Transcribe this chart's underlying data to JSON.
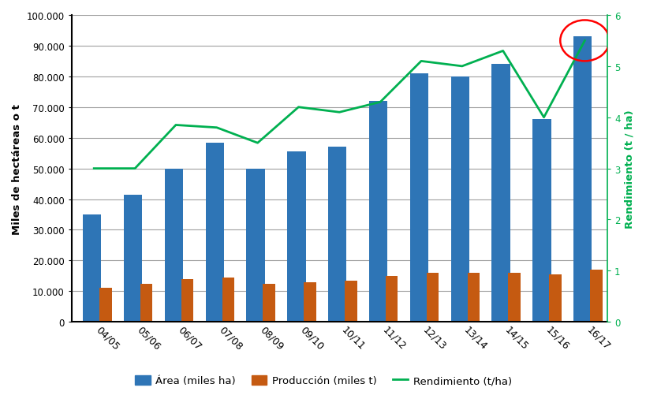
{
  "categories": [
    "04/05",
    "05/06",
    "06/07",
    "07/08",
    "08/09",
    "09/10",
    "10/11",
    "11/12",
    "12/13",
    "13/14",
    "14/15",
    "15/16",
    "16/17"
  ],
  "area": [
    35000,
    41500,
    50000,
    58500,
    50000,
    55500,
    57000,
    72000,
    81000,
    80000,
    84000,
    66000,
    93000
  ],
  "produccion": [
    11000,
    12500,
    14000,
    14500,
    12500,
    13000,
    13500,
    15000,
    16000,
    16000,
    16000,
    15500,
    17000
  ],
  "rendimiento": [
    3.0,
    3.0,
    3.85,
    3.8,
    3.5,
    4.2,
    4.1,
    4.3,
    5.1,
    5.0,
    5.3,
    4.0,
    5.5
  ],
  "bar_color_area": "#2E75B6",
  "bar_color_prod": "#C55A11",
  "line_color": "#00B050",
  "circle_color": "red",
  "ylabel_left": "Miles de hectáreas o t",
  "ylabel_right": "Rendimiento (t / ha)",
  "ylim_left": [
    0,
    100000
  ],
  "ylim_right": [
    0,
    6
  ],
  "yticks_left": [
    0,
    10000,
    20000,
    30000,
    40000,
    50000,
    60000,
    70000,
    80000,
    90000,
    100000
  ],
  "yticks_right": [
    0,
    1,
    2,
    3,
    4,
    5,
    6
  ],
  "ytick_labels_left": [
    "0",
    "10.000",
    "20.000",
    "30.000",
    "40.000",
    "50.000",
    "60.000",
    "70.000",
    "80.000",
    "90.000",
    "100.000"
  ],
  "legend_labels": [
    "Área (miles ha)",
    "Producción (miles t)",
    "Rendimiento (t/ha)"
  ],
  "background_color": "#FFFFFF",
  "grid_color": "#A0A0A0"
}
